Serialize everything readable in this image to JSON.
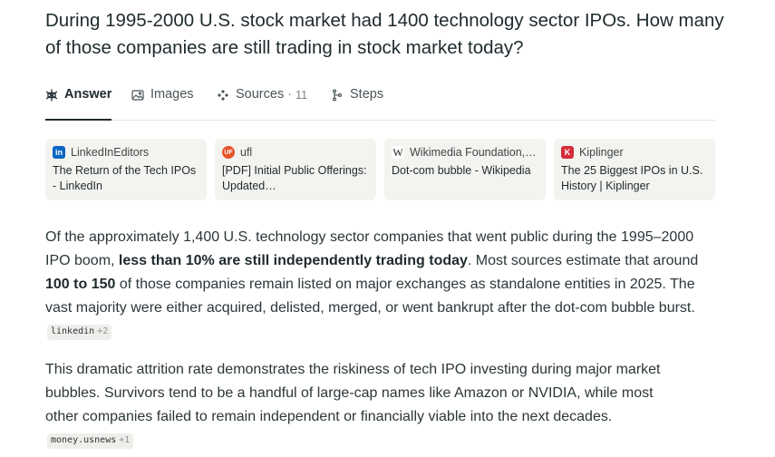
{
  "question": "During 1995-2000 U.S. stock market had 1400 technology sector IPOs. How many of those companies are still trading in stock market today?",
  "tabs": [
    {
      "label": "Answer",
      "icon": "answer-icon"
    },
    {
      "label": "Images",
      "icon": "image-icon"
    },
    {
      "label": "Sources",
      "count": "11",
      "icon": "sources-icon"
    },
    {
      "label": "Steps",
      "icon": "steps-icon"
    }
  ],
  "sources": [
    {
      "name": "LinkedInEditors",
      "title": "The Return of the Tech IPOs - LinkedIn",
      "logo": "in",
      "color": "#0a66c2"
    },
    {
      "name": "ufl",
      "title": "[PDF] Initial Public Offerings: Updated…",
      "logo": "UF",
      "color": "#e8542a"
    },
    {
      "name": "Wikimedia Foundation,…",
      "title": "Dot-com bubble - Wikipedia",
      "logo": "W",
      "color": "#ffffff"
    },
    {
      "name": "Kiplinger",
      "title": "The 25 Biggest IPOs in U.S. History | Kiplinger",
      "logo": "K",
      "color": "#d62b3a"
    }
  ],
  "answer": {
    "p1_a": "Of the approximately 1,400 U.S. technology sector companies that went public during the 1995–2000 IPO boom, ",
    "p1_b": "less than 10% are still independently trading today",
    "p1_c": ". Most sources estimate that around ",
    "p1_d": "100 to 150",
    "p1_e": " of those companies remain listed on major exchanges as standalone entities in 2025. The vast majority were either acquired, delisted, merged, or went bankrupt after the dot-com bubble burst.",
    "cite1": {
      "label": "linkedin",
      "plus": "+2"
    },
    "p2": "This dramatic attrition rate demonstrates the riskiness of tech IPO investing during major market bubbles. Survivors tend to be a handful of large-cap names like Amazon or NVIDIA, while most other companies failed to remain independent or financially viable into the next decades.",
    "cite2": {
      "label": "money.usnews",
      "plus": "+1"
    }
  }
}
